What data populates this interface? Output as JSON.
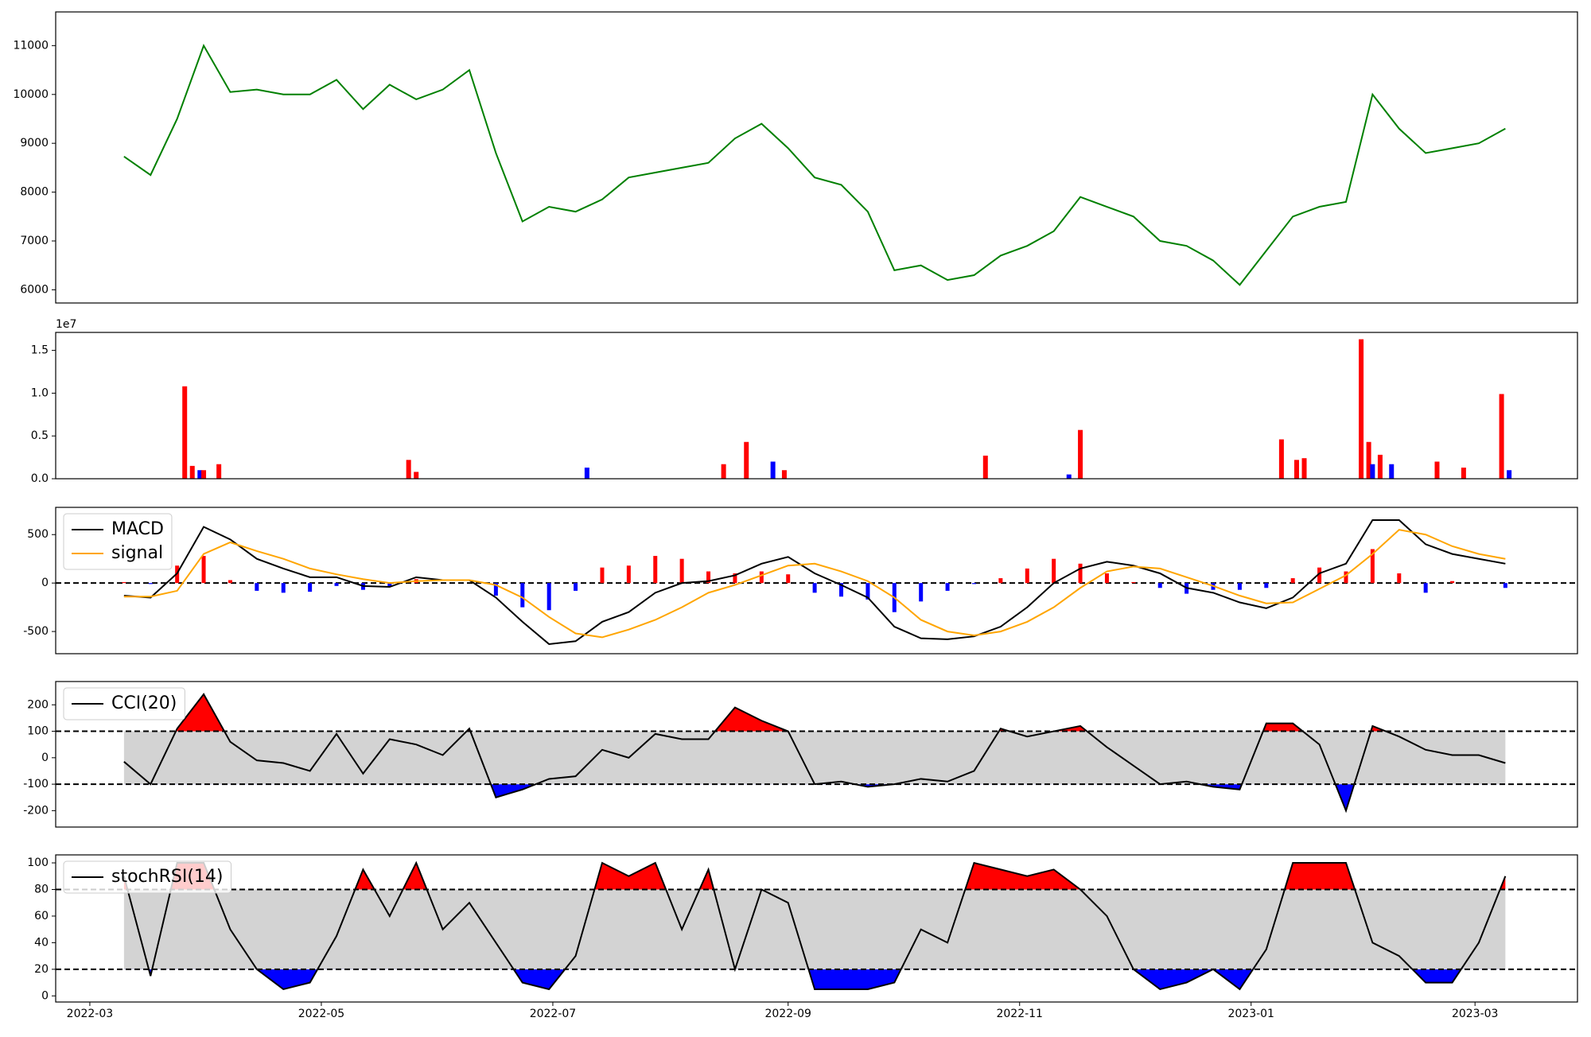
{
  "chart_data": [
    {
      "type": "line",
      "x": [
        9,
        16,
        23,
        30,
        37,
        44,
        51,
        58,
        65,
        72,
        79,
        86,
        93,
        100,
        107,
        114,
        121,
        128,
        135,
        142,
        149,
        156,
        163,
        170,
        177,
        184,
        191,
        198,
        205,
        212,
        219,
        226,
        233,
        240,
        247,
        254,
        261,
        268,
        275,
        282,
        289,
        296,
        303,
        310,
        317,
        324,
        331,
        338,
        345,
        352,
        359,
        366,
        373
      ],
      "series": [
        {
          "color": "green",
          "values": [
            8730,
            8350,
            9500,
            11000,
            10050,
            10100,
            10000,
            10000,
            10300,
            9700,
            10200,
            9900,
            10100,
            10500,
            8800,
            7400,
            7700,
            7600,
            7850,
            8300,
            8400,
            8500,
            8600,
            9100,
            9400,
            8900,
            8300,
            8150,
            7600,
            6400,
            6500,
            6200,
            6300,
            6700,
            6900,
            7200,
            7900,
            7700,
            7500,
            7000,
            6900,
            6600,
            6100,
            6800,
            7500,
            7700,
            7800,
            10000,
            9300,
            8800,
            8900,
            9000,
            9300
          ]
        }
      ],
      "xlim": [
        -9,
        392
      ],
      "ylim": [
        5730,
        11690
      ],
      "yticks": [
        6000,
        7000,
        8000,
        9000,
        10000,
        11000
      ]
    },
    {
      "type": "bar",
      "x": [
        25,
        27,
        29,
        30,
        34,
        84,
        86,
        131,
        167,
        173,
        180,
        183,
        236,
        258,
        261,
        314,
        318,
        320,
        335,
        337,
        338,
        340,
        343,
        355,
        362,
        372,
        374
      ],
      "values": [
        1.08,
        0.15,
        0.1,
        0.1,
        0.17,
        0.22,
        0.08,
        0.13,
        0.17,
        0.43,
        0.2,
        0.1,
        0.27,
        0.05,
        0.57,
        0.46,
        0.22,
        0.24,
        1.63,
        0.43,
        0.17,
        0.28,
        0.17,
        0.2,
        0.13,
        0.99,
        0.1
      ],
      "colors": [
        "red",
        "red",
        "blue",
        "red",
        "red",
        "red",
        "red",
        "blue",
        "red",
        "red",
        "blue",
        "red",
        "red",
        "blue",
        "red",
        "red",
        "red",
        "red",
        "red",
        "red",
        "blue",
        "red",
        "blue",
        "red",
        "red",
        "red",
        "blue"
      ],
      "offset_label": "1e7",
      "xlim": [
        -9,
        392
      ],
      "ylim": [
        0,
        1.71
      ],
      "yticks": [
        {
          "value": 0,
          "label": "0.0"
        },
        0.5,
        {
          "value": 1,
          "label": "1.0"
        },
        1.5
      ]
    },
    {
      "type": "line",
      "x": [
        9,
        16,
        23,
        30,
        37,
        44,
        51,
        58,
        65,
        72,
        79,
        86,
        93,
        100,
        107,
        114,
        121,
        128,
        135,
        142,
        149,
        156,
        163,
        170,
        177,
        184,
        191,
        198,
        205,
        212,
        219,
        226,
        233,
        240,
        247,
        254,
        261,
        268,
        275,
        282,
        289,
        296,
        303,
        310,
        317,
        324,
        331,
        338,
        345,
        352,
        359,
        366,
        373
      ],
      "series": [
        {
          "name": "MACD",
          "color": "black",
          "values": [
            -130,
            -150,
            100,
            580,
            450,
            250,
            150,
            60,
            60,
            -30,
            -40,
            60,
            30,
            30,
            -150,
            -400,
            -630,
            -600,
            -400,
            -300,
            -100,
            0,
            20,
            80,
            200,
            270,
            100,
            -20,
            -150,
            -450,
            -570,
            -580,
            -550,
            -450,
            -250,
            0,
            150,
            220,
            180,
            100,
            -50,
            -100,
            -200,
            -260,
            -150,
            100,
            200,
            650,
            650,
            400,
            300,
            250,
            200
          ]
        },
        {
          "name": "signal",
          "color": "orange",
          "values": [
            -140,
            -140,
            -80,
            300,
            420,
            330,
            250,
            150,
            90,
            40,
            0,
            20,
            30,
            30,
            -20,
            -150,
            -350,
            -520,
            -560,
            -480,
            -380,
            -250,
            -100,
            -20,
            80,
            180,
            200,
            120,
            20,
            -150,
            -380,
            -500,
            -540,
            -500,
            -400,
            -250,
            -50,
            120,
            170,
            150,
            60,
            -30,
            -130,
            -210,
            -200,
            -60,
            80,
            300,
            550,
            500,
            380,
            300,
            250
          ]
        }
      ],
      "histogram": {
        "values": [
          10,
          -10,
          180,
          280,
          30,
          -80,
          -100,
          -90,
          -30,
          -70,
          -40,
          40,
          0,
          0,
          -130,
          -250,
          -280,
          -80,
          160,
          180,
          280,
          250,
          120,
          100,
          120,
          90,
          -100,
          -140,
          -170,
          -300,
          -190,
          -80,
          -10,
          50,
          150,
          250,
          200,
          100,
          10,
          -50,
          -110,
          -70,
          -70,
          -50,
          50,
          160,
          120,
          350,
          100,
          -100,
          20,
          0,
          -50
        ],
        "up_color": "red",
        "down_color": "blue"
      },
      "hlines": [
        0
      ],
      "legend": "upper left",
      "xlim": [
        -9,
        392
      ],
      "ylim": [
        -729,
        781
      ],
      "yticks": [
        -500,
        0,
        500
      ]
    },
    {
      "type": "line",
      "x": [
        9,
        16,
        23,
        30,
        37,
        44,
        51,
        58,
        65,
        72,
        79,
        86,
        93,
        100,
        107,
        114,
        121,
        128,
        135,
        142,
        149,
        156,
        163,
        170,
        177,
        184,
        191,
        198,
        205,
        212,
        219,
        226,
        233,
        240,
        247,
        254,
        261,
        268,
        275,
        282,
        289,
        296,
        303,
        310,
        317,
        324,
        331,
        338,
        345,
        352,
        359,
        366,
        373
      ],
      "series": [
        {
          "name": "CCI(20)",
          "color": "black",
          "values": [
            -15,
            -100,
            110,
            240,
            60,
            -10,
            -20,
            -50,
            90,
            -60,
            70,
            50,
            10,
            110,
            -150,
            -120,
            -80,
            -70,
            30,
            0,
            90,
            70,
            70,
            190,
            140,
            100,
            -100,
            -90,
            -110,
            -100,
            -80,
            -90,
            -50,
            110,
            80,
            100,
            120,
            40,
            -30,
            -100,
            -90,
            -110,
            -120,
            130,
            130,
            50,
            -200,
            120,
            80,
            30,
            10,
            10,
            -20
          ]
        }
      ],
      "thresholds": [
        -100,
        100
      ],
      "band_color": "lightgray",
      "above_color": "red",
      "below_color": "blue",
      "legend": "upper left",
      "xlim": [
        -9,
        392
      ],
      "ylim": [
        -262,
        288
      ],
      "yticks": [
        -200,
        -100,
        0,
        100,
        200
      ]
    },
    {
      "type": "line",
      "x": [
        9,
        16,
        23,
        30,
        37,
        44,
        51,
        58,
        65,
        72,
        79,
        86,
        93,
        100,
        107,
        114,
        121,
        128,
        135,
        142,
        149,
        156,
        163,
        170,
        177,
        184,
        191,
        198,
        205,
        212,
        219,
        226,
        233,
        240,
        247,
        254,
        261,
        268,
        275,
        282,
        289,
        296,
        303,
        310,
        317,
        324,
        331,
        338,
        345,
        352,
        359,
        366,
        373
      ],
      "series": [
        {
          "name": "stochRSI(14)",
          "color": "black",
          "values": [
            90,
            15,
            100,
            100,
            50,
            20,
            5,
            10,
            45,
            95,
            60,
            100,
            50,
            70,
            40,
            10,
            5,
            30,
            100,
            90,
            100,
            50,
            95,
            20,
            80,
            70,
            5,
            5,
            5,
            10,
            50,
            40,
            100,
            95,
            90,
            95,
            80,
            60,
            20,
            5,
            10,
            20,
            5,
            35,
            100,
            100,
            100,
            40,
            30,
            10,
            10,
            40,
            90
          ]
        }
      ],
      "thresholds": [
        20,
        80
      ],
      "band_color": "lightgray",
      "above_color": "red",
      "below_color": "blue",
      "legend": "upper left",
      "xlim": [
        -9,
        392
      ],
      "ylim": [
        -4.6,
        106
      ],
      "yticks": [
        0,
        20,
        40,
        60,
        80,
        100
      ],
      "xticks": [
        {
          "value": 0,
          "label": "2022-03"
        },
        {
          "value": 61,
          "label": "2022-05"
        },
        {
          "value": 122,
          "label": "2022-07"
        },
        {
          "value": 184,
          "label": "2022-09"
        },
        {
          "value": 245,
          "label": "2022-11"
        },
        {
          "value": 306,
          "label": "2023-01"
        },
        {
          "value": 365,
          "label": "2023-03"
        }
      ]
    }
  ]
}
